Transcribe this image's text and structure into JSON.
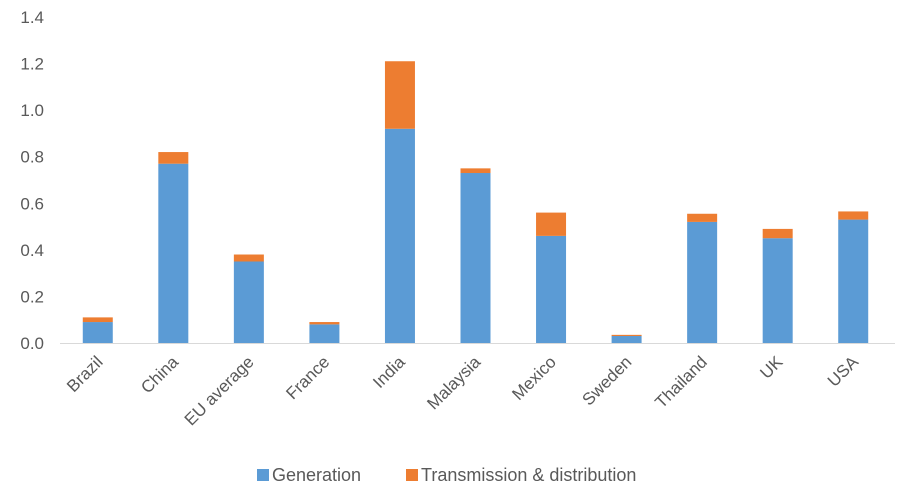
{
  "chart_data": {
    "type": "bar",
    "stacked": true,
    "title": "",
    "xlabel": "",
    "ylabel": "",
    "ylim": [
      0,
      1.4
    ],
    "yticks": [
      "0.0",
      "0.2",
      "0.4",
      "0.6",
      "0.8",
      "1.0",
      "1.2",
      "1.4"
    ],
    "categories": [
      "Brazil",
      "China",
      "EU average",
      "France",
      "India",
      "Malaysia",
      "Mexico",
      "Sweden",
      "Thailand",
      "UK",
      "USA"
    ],
    "series": [
      {
        "name": "Generation",
        "color": "#5B9BD5",
        "values": [
          0.09,
          0.77,
          0.35,
          0.08,
          0.92,
          0.73,
          0.46,
          0.03,
          0.52,
          0.45,
          0.53
        ]
      },
      {
        "name": "Transmission & distribution",
        "color": "#ED7D31",
        "values": [
          0.02,
          0.05,
          0.03,
          0.01,
          0.29,
          0.02,
          0.1,
          0.005,
          0.035,
          0.04,
          0.035
        ]
      }
    ],
    "grid": false,
    "legend_position": "bottom"
  }
}
